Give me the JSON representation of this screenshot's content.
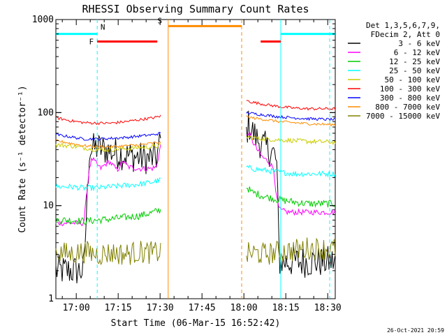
{
  "chart_data": {
    "type": "line",
    "title": "RHESSI Observing Summary Count Rates",
    "xlabel": "Start Time (06-Mar-15 16:52:42)",
    "ylabel": "Count Rate (s⁻¹ detector⁻¹)",
    "yscale": "log",
    "ylim": [
      1,
      1000
    ],
    "xlim_min": [
      0,
      100
    ],
    "xticks": [
      {
        "t": 7.3,
        "label": "17:00"
      },
      {
        "t": 22.3,
        "label": "17:15"
      },
      {
        "t": 37.3,
        "label": "17:30"
      },
      {
        "t": 52.3,
        "label": "17:45"
      },
      {
        "t": 67.3,
        "label": "18:00"
      },
      {
        "t": 82.3,
        "label": "18:15"
      },
      {
        "t": 97.3,
        "label": "18:30"
      }
    ],
    "yticks": [
      {
        "v": 1,
        "label": "1"
      },
      {
        "v": 10,
        "label": "10"
      },
      {
        "v": 100,
        "label": "100"
      },
      {
        "v": 1000,
        "label": "1000"
      }
    ],
    "legend_header": [
      "Det 1,3,5,6,7,9,",
      "FDecim 2, Att 0"
    ],
    "legend_placement": "right",
    "series": [
      {
        "name": "3 - 6 keV",
        "color": "#000000",
        "seg1": {
          "t": [
            0,
            5,
            10,
            12,
            15,
            20,
            25,
            30,
            33,
            36,
            37.5
          ],
          "v": [
            2.0,
            2.0,
            2.0,
            40,
            42,
            38,
            35,
            33,
            32,
            33,
            50
          ]
        },
        "seg2": {
          "t": [
            68.2,
            69,
            70,
            72,
            74,
            76,
            78,
            79,
            80,
            83,
            90,
            100
          ],
          "v": [
            60,
            75,
            65,
            52,
            45,
            40,
            36,
            30,
            2.5,
            2.5,
            2.5,
            2.5
          ]
        }
      },
      {
        "name": "6 - 12 keV",
        "color": "#ff00ff",
        "seg1": {
          "t": [
            0,
            5,
            10,
            12,
            13,
            16,
            19,
            22,
            24,
            26,
            30,
            34,
            36,
            37.5
          ],
          "v": [
            6.5,
            6.5,
            6.5,
            26,
            32,
            25,
            30,
            24,
            30,
            26,
            25,
            25,
            26,
            45
          ]
        },
        "seg2": {
          "t": [
            68.2,
            69,
            70,
            72,
            74,
            76,
            78,
            79,
            80,
            83,
            90,
            100
          ],
          "v": [
            55,
            62,
            52,
            40,
            33,
            30,
            25,
            12,
            9,
            8.5,
            8.5,
            8.5
          ]
        }
      },
      {
        "name": "12 - 25 keV",
        "color": "#00cc00",
        "seg1": {
          "t": [
            0,
            5,
            10,
            15,
            20,
            25,
            30,
            35,
            37.5
          ],
          "v": [
            7,
            7,
            6.8,
            7,
            7.2,
            7.5,
            7.8,
            8.5,
            9
          ]
        },
        "seg2": {
          "t": [
            68.2,
            70,
            75,
            80,
            85,
            90,
            100
          ],
          "v": [
            16,
            14,
            12.5,
            11.5,
            11,
            10.5,
            10.5
          ]
        }
      },
      {
        "name": "25 - 50 keV",
        "color": "#00ffff",
        "seg1": {
          "t": [
            0,
            5,
            10,
            15,
            20,
            25,
            30,
            35,
            37.5
          ],
          "v": [
            16,
            16,
            15.5,
            15.5,
            16,
            16.5,
            17,
            18,
            19
          ]
        },
        "seg2": {
          "t": [
            68.2,
            70,
            75,
            80,
            85,
            90,
            100
          ],
          "v": [
            26,
            25,
            24,
            23,
            22,
            22,
            22
          ]
        }
      },
      {
        "name": "50 - 100 keV",
        "color": "#cccc00",
        "seg1": {
          "t": [
            0,
            5,
            10,
            15,
            20,
            25,
            30,
            35,
            37.5
          ],
          "v": [
            45,
            44,
            42,
            40,
            40,
            41,
            42,
            43,
            44
          ]
        },
        "seg2": {
          "t": [
            68.2,
            70,
            75,
            80,
            85,
            90,
            100
          ],
          "v": [
            55,
            54,
            52,
            51,
            50,
            49,
            48
          ]
        }
      },
      {
        "name": "100 - 300 keV",
        "color": "#ff0000",
        "seg1": {
          "t": [
            0,
            5,
            10,
            15,
            20,
            25,
            30,
            35,
            37.5
          ],
          "v": [
            88,
            82,
            78,
            77,
            77,
            80,
            84,
            88,
            92
          ]
        },
        "seg2": {
          "t": [
            68.2,
            70,
            75,
            80,
            85,
            90,
            100
          ],
          "v": [
            135,
            130,
            122,
            116,
            112,
            110,
            110
          ]
        }
      },
      {
        "name": "300 - 800 keV",
        "color": "#0000ff",
        "seg1": {
          "t": [
            0,
            5,
            10,
            15,
            20,
            25,
            30,
            35,
            37.5
          ],
          "v": [
            58,
            55,
            52,
            52,
            53,
            54,
            56,
            58,
            60
          ]
        },
        "seg2": {
          "t": [
            68.2,
            70,
            75,
            80,
            85,
            90,
            100
          ],
          "v": [
            100,
            98,
            94,
            90,
            88,
            86,
            84
          ]
        }
      },
      {
        "name": "800 - 7000 keV",
        "color": "#ff8c00",
        "seg1": {
          "t": [
            0,
            5,
            10,
            15,
            20,
            25,
            30,
            35,
            37.5
          ],
          "v": [
            50,
            47,
            44,
            43,
            43,
            44,
            45,
            47,
            48
          ]
        },
        "seg2": {
          "t": [
            68.2,
            70,
            75,
            80,
            85,
            90,
            100
          ],
          "v": [
            90,
            88,
            84,
            80,
            78,
            76,
            74
          ]
        }
      },
      {
        "name": "7000 - 15000 keV",
        "color": "#808000",
        "seg1": {
          "t": [
            0,
            5,
            10,
            15,
            20,
            25,
            30,
            35,
            37.5
          ],
          "v": [
            3.2,
            3.0,
            3.2,
            3.0,
            3.1,
            3.0,
            3.2,
            3.1,
            3.2
          ]
        },
        "seg2": {
          "t": [
            68.2,
            70,
            75,
            80,
            85,
            90,
            100
          ],
          "v": [
            3.0,
            3.1,
            3.0,
            3.2,
            3.3,
            3.5,
            3.4
          ]
        }
      }
    ],
    "annotations": [
      {
        "label": "N",
        "t": 14.8,
        "color": "#00ffff"
      },
      {
        "label": "F",
        "t": 14.2,
        "color": "#ff0000"
      },
      {
        "label": "S",
        "t": 40.2,
        "color": "#ff8c00"
      }
    ],
    "bars": [
      {
        "color": "#00ffff",
        "t0": 0,
        "t1": 14.8,
        "v": 700
      },
      {
        "color": "#00ffff",
        "t0": 80.5,
        "t1": 100,
        "v": 700
      },
      {
        "color": "#ff0000",
        "t0": 14.8,
        "t1": 36.3,
        "v": 580
      },
      {
        "color": "#ff0000",
        "t0": 73.3,
        "t1": 80.5,
        "v": 580
      },
      {
        "color": "#ff8c00",
        "t0": 40.2,
        "t1": 66.5,
        "v": 850
      }
    ],
    "vlines": [
      {
        "t": 14.8,
        "color": "#00ffff",
        "style": "dashed"
      },
      {
        "t": 80.5,
        "color": "#00ffff",
        "style": "solid"
      },
      {
        "t": 98.0,
        "color": "#00ffff",
        "style": "dashed"
      },
      {
        "t": 40.2,
        "color": "#ff8c00",
        "style": "solid"
      },
      {
        "t": 66.5,
        "color": "#ff8c00",
        "style": "dashed"
      }
    ]
  },
  "footer": {
    "date": "26-Oct-2021 20:59"
  }
}
